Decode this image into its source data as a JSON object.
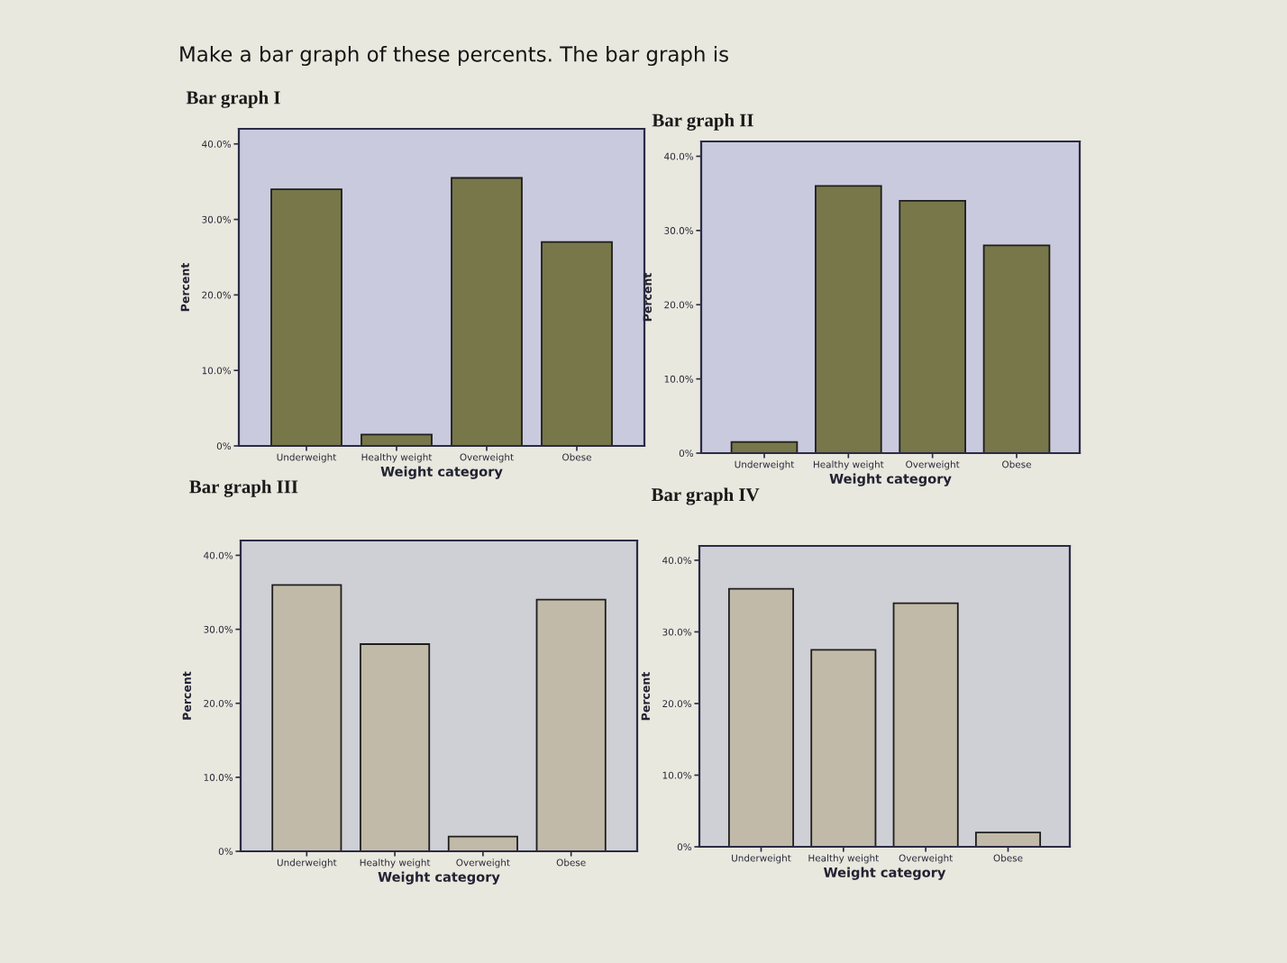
{
  "chart_data": [
    {
      "type": "bar",
      "title": "Bar graph I",
      "xlabel": "Weight category",
      "ylabel": "Percent",
      "categories": [
        "Underweight",
        "Healthy weight",
        "Overweight",
        "Obese"
      ],
      "values": [
        34,
        1.5,
        35.5,
        27
      ],
      "color": "#77774a",
      "ylim": [
        0,
        42
      ],
      "yticks": [
        {
          "value": 0,
          "label": "0%"
        },
        {
          "value": 10,
          "label": "10.0%"
        },
        {
          "value": 20,
          "label": "20.0%"
        },
        {
          "value": 30,
          "label": "30.0%"
        },
        {
          "value": 40,
          "label": "40.0%"
        }
      ],
      "annotations": [
        "Make a bar graph of these percents. The bar graph is"
      ]
    },
    {
      "type": "bar",
      "title": "Bar graph II",
      "xlabel": "Weight category",
      "ylabel": "Percent",
      "categories": [
        "Underweight",
        "Healthy weight",
        "Overweight",
        "Obese"
      ],
      "values": [
        1.5,
        36,
        34,
        28
      ],
      "color": "#77774a",
      "ylim": [
        0,
        42
      ],
      "yticks": [
        {
          "value": 0,
          "label": "0%"
        },
        {
          "value": 10,
          "label": "10.0%"
        },
        {
          "value": 20,
          "label": "20.0%"
        },
        {
          "value": 30,
          "label": "30.0%"
        },
        {
          "value": 40,
          "label": "40.0%"
        }
      ]
    },
    {
      "type": "bar",
      "title": "Bar graph III",
      "xlabel": "Weight category",
      "ylabel": "Percent",
      "categories": [
        "Underweight",
        "Healthy weight",
        "Overweight",
        "Obese"
      ],
      "values": [
        36,
        28,
        2,
        34
      ],
      "color": "#c2baa8",
      "ylim": [
        0,
        42
      ],
      "yticks": [
        {
          "value": 0,
          "label": "0%"
        },
        {
          "value": 10,
          "label": "10.0%"
        },
        {
          "value": 20,
          "label": "20.0%"
        },
        {
          "value": 30,
          "label": "30.0%"
        },
        {
          "value": 40,
          "label": "40.0%"
        }
      ]
    },
    {
      "type": "bar",
      "title": "Bar graph IV",
      "xlabel": "Weight category",
      "ylabel": "Percent",
      "categories": [
        "Underweight",
        "Healthy weight",
        "Overweight",
        "Obese"
      ],
      "values": [
        36,
        27.5,
        34,
        2
      ],
      "color": "#c2baa8",
      "ylim": [
        0,
        42
      ],
      "yticks": [
        {
          "value": 0,
          "label": "0%"
        },
        {
          "value": 10,
          "label": "10.0%"
        },
        {
          "value": 20,
          "label": "20.0%"
        },
        {
          "value": 30,
          "label": "30.0%"
        },
        {
          "value": 40,
          "label": "40.0%"
        }
      ]
    }
  ]
}
